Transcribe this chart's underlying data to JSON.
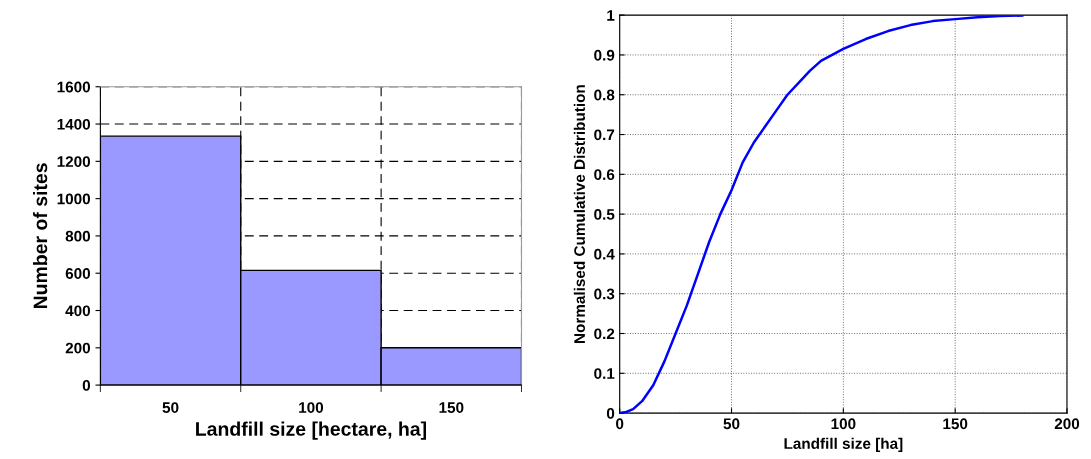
{
  "chart_data": [
    {
      "type": "bar",
      "xlabel": "Landfill size [hectare, ha]",
      "ylabel": "Number of sites",
      "categories": [
        "50",
        "100",
        "150"
      ],
      "values": [
        1335,
        615,
        200
      ],
      "color": "#9999ff",
      "ylim": [
        0,
        1600
      ],
      "yticks": [
        0,
        200,
        400,
        600,
        800,
        1000,
        1200,
        1400,
        1600
      ],
      "grid": true
    },
    {
      "type": "line",
      "xlabel": "Landfill size [ha]",
      "ylabel": "Normalised Cumulative Distribution",
      "grid": true,
      "xlim": [
        0,
        200
      ],
      "ylim": [
        0,
        1
      ],
      "xticks": [
        0,
        50,
        100,
        150,
        200
      ],
      "yticks": [
        0,
        0.1,
        0.2,
        0.3,
        0.4,
        0.5,
        0.6,
        0.7,
        0.8,
        0.9,
        1
      ],
      "series": [
        {
          "color": "#0000ff",
          "x": [
            0,
            3,
            6,
            10,
            15,
            20,
            25,
            30,
            35,
            40,
            45,
            50,
            55,
            60,
            65,
            70,
            75,
            80,
            85,
            90,
            95,
            100,
            110,
            120,
            130,
            140,
            150,
            160,
            170,
            180
          ],
          "values": [
            0,
            0.003,
            0.01,
            0.03,
            0.07,
            0.13,
            0.2,
            0.27,
            0.35,
            0.43,
            0.5,
            0.56,
            0.63,
            0.68,
            0.72,
            0.76,
            0.8,
            0.83,
            0.86,
            0.885,
            0.9,
            0.915,
            0.94,
            0.96,
            0.975,
            0.985,
            0.99,
            0.995,
            0.998,
            0.999
          ]
        }
      ]
    }
  ]
}
